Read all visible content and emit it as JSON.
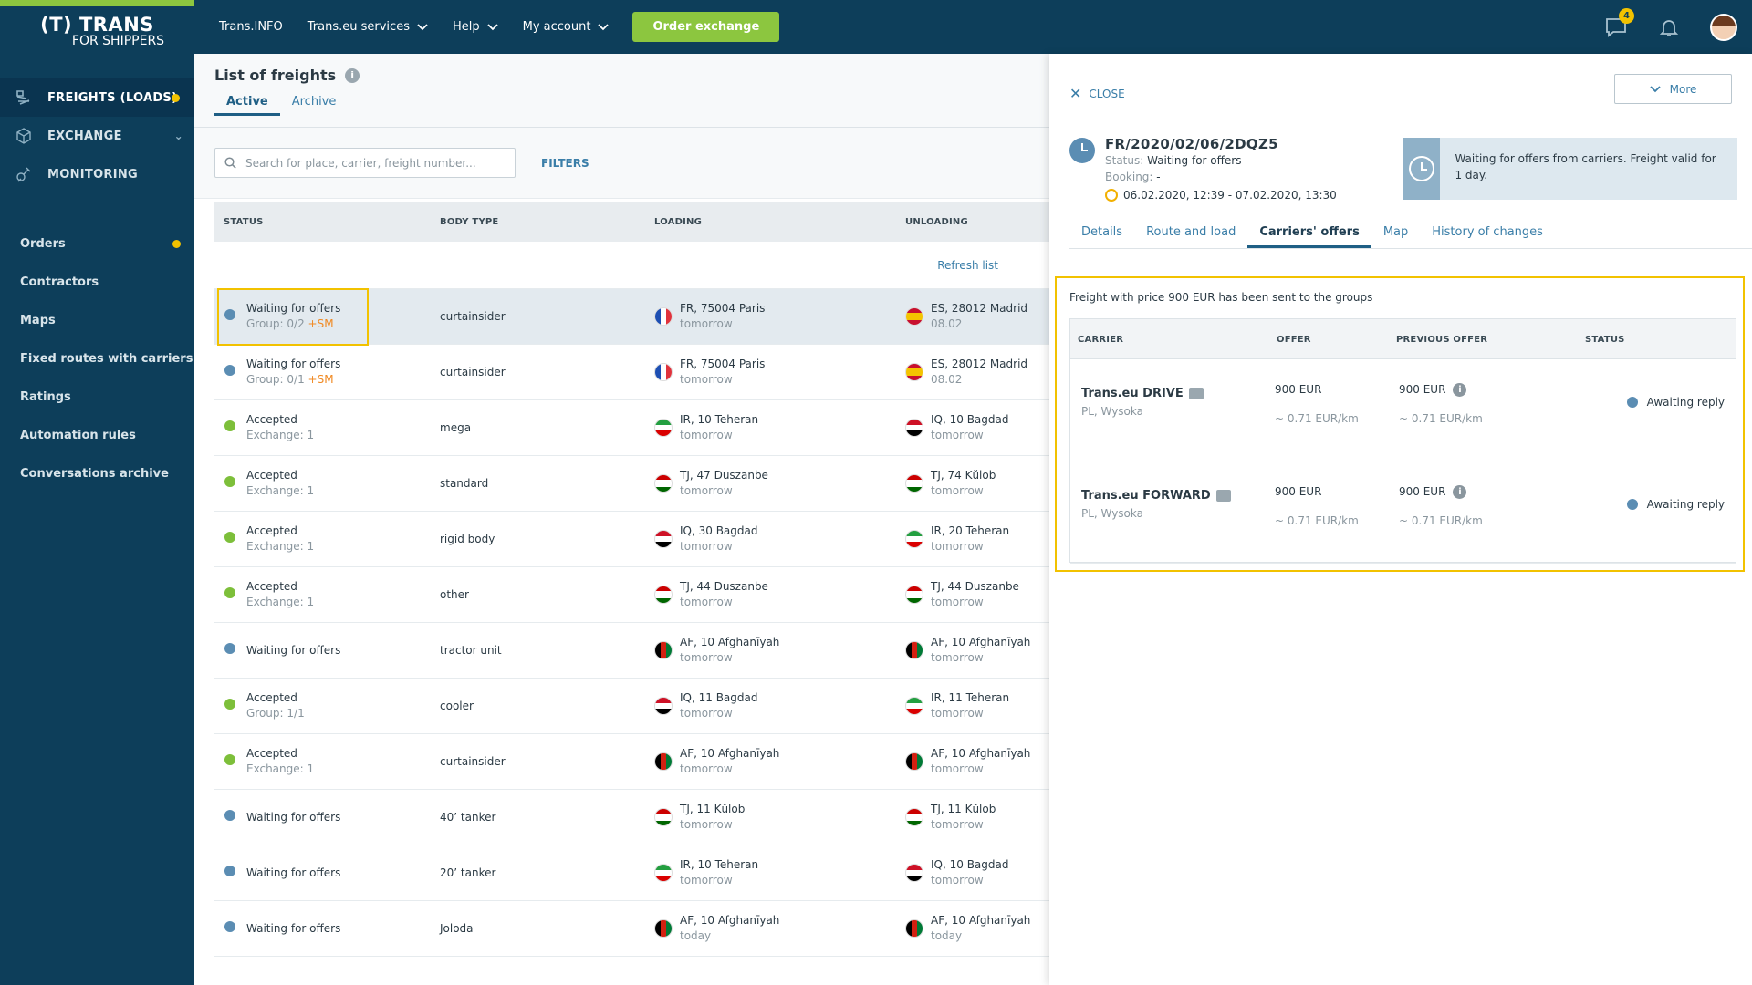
{
  "logo": {
    "line1": "(T) TRANS",
    "line2": "FOR SHIPPERS"
  },
  "sidebar": {
    "main": [
      {
        "label": "FREIGHTS (LOADS)",
        "icon": "freight-icon",
        "active": true,
        "dot": true
      },
      {
        "label": "EXCHANGE",
        "icon": "cube-icon",
        "active": false,
        "chevron": "⌄"
      },
      {
        "label": "MONITORING",
        "icon": "satellite-icon",
        "active": false
      }
    ],
    "sub": [
      {
        "label": "Orders",
        "dot": true
      },
      {
        "label": "Contractors"
      },
      {
        "label": "Maps"
      },
      {
        "label": "Fixed routes with carriers"
      },
      {
        "label": "Ratings"
      },
      {
        "label": "Automation rules"
      },
      {
        "label": "Conversations archive"
      }
    ]
  },
  "topbar": {
    "nav": [
      {
        "label": "Trans.INFO",
        "dropdown": false
      },
      {
        "label": "Trans.eu services",
        "dropdown": true
      },
      {
        "label": "Help",
        "dropdown": true
      },
      {
        "label": "My account",
        "dropdown": true
      }
    ],
    "order_button": "Order exchange",
    "messages_badge": "4"
  },
  "list": {
    "title": "List of freights",
    "info_glyph": "i",
    "tabs": [
      "Active",
      "Archive"
    ],
    "search_placeholder": "Search for place, carrier, freight number...",
    "filters_label": "FILTERS",
    "columns": [
      "STATUS",
      "BODY TYPE",
      "LOADING",
      "UNLOADING"
    ],
    "refresh_label": "Refresh list",
    "rows": [
      {
        "status": "Waiting for offers",
        "kind": "wait",
        "sub": "Group: 0/2 ",
        "sm": "+SM",
        "body": "curtainsider",
        "load_flag": "fr",
        "load": "FR, 75004 Paris",
        "load_when": "tomorrow",
        "unload_flag": "es",
        "unload": "ES, 28012 Madrid",
        "unload_when": "08.02"
      },
      {
        "status": "Waiting for offers",
        "kind": "wait",
        "sub": "Group: 0/1 ",
        "sm": "+SM",
        "body": "curtainsider",
        "load_flag": "fr",
        "load": "FR, 75004 Paris",
        "load_when": "tomorrow",
        "unload_flag": "es",
        "unload": "ES, 28012 Madrid",
        "unload_when": "08.02"
      },
      {
        "status": "Accepted",
        "kind": "ok",
        "sub": "Exchange: 1",
        "sm": "",
        "body": "mega",
        "load_flag": "ir",
        "load": "IR, 10 Teheran",
        "load_when": "tomorrow",
        "unload_flag": "iq",
        "unload": "IQ, 10 Bagdad",
        "unload_when": "tomorrow"
      },
      {
        "status": "Accepted",
        "kind": "ok",
        "sub": "Exchange: 1",
        "sm": "",
        "body": "standard",
        "load_flag": "tj",
        "load": "TJ, 47 Duszanbe",
        "load_when": "tomorrow",
        "unload_flag": "tj",
        "unload": "TJ, 74 Kŭlob",
        "unload_when": "tomorrow"
      },
      {
        "status": "Accepted",
        "kind": "ok",
        "sub": "Exchange: 1",
        "sm": "",
        "body": "rigid body",
        "load_flag": "iq",
        "load": "IQ, 30 Bagdad",
        "load_when": "tomorrow",
        "unload_flag": "ir",
        "unload": "IR, 20 Teheran",
        "unload_when": "tomorrow"
      },
      {
        "status": "Accepted",
        "kind": "ok",
        "sub": "Exchange: 1",
        "sm": "",
        "body": "other",
        "load_flag": "tj",
        "load": "TJ, 44 Duszanbe",
        "load_when": "tomorrow",
        "unload_flag": "tj",
        "unload": "TJ, 44 Duszanbe",
        "unload_when": "tomorrow"
      },
      {
        "status": "Waiting for offers",
        "kind": "wait",
        "sub": "",
        "sm": "",
        "body": "tractor unit",
        "load_flag": "af",
        "load": "AF, 10 Afghanīyah",
        "load_when": "tomorrow",
        "unload_flag": "af",
        "unload": "AF, 10 Afghanīyah",
        "unload_when": "tomorrow"
      },
      {
        "status": "Accepted",
        "kind": "ok",
        "sub": "Group: 1/1",
        "sm": "",
        "body": "cooler",
        "load_flag": "iq",
        "load": "IQ, 11 Bagdad",
        "load_when": "tomorrow",
        "unload_flag": "ir",
        "unload": "IR, 11 Teheran",
        "unload_when": "tomorrow"
      },
      {
        "status": "Accepted",
        "kind": "ok",
        "sub": "Exchange: 1",
        "sm": "",
        "body": "curtainsider",
        "load_flag": "af",
        "load": "AF, 10 Afghanīyah",
        "load_when": "tomorrow",
        "unload_flag": "af",
        "unload": "AF, 10 Afghanīyah",
        "unload_when": "tomorrow"
      },
      {
        "status": "Waiting for offers",
        "kind": "wait",
        "sub": "",
        "sm": "",
        "body": "40’ tanker",
        "load_flag": "tj",
        "load": "TJ, 11 Kŭlob",
        "load_when": "tomorrow",
        "unload_flag": "tj",
        "unload": "TJ, 11 Kŭlob",
        "unload_when": "tomorrow"
      },
      {
        "status": "Waiting for offers",
        "kind": "wait",
        "sub": "",
        "sm": "",
        "body": "20’ tanker",
        "load_flag": "ir",
        "load": "IR, 10 Teheran",
        "load_when": "tomorrow",
        "unload_flag": "iq",
        "unload": "IQ, 10 Bagdad",
        "unload_when": "tomorrow"
      },
      {
        "status": "Waiting for offers",
        "kind": "wait",
        "sub": "",
        "sm": "",
        "body": "Joloda",
        "load_flag": "af",
        "load": "AF, 10 Afghanīyah",
        "load_when": "today",
        "unload_flag": "af",
        "unload": "AF, 10 Afghanīyah",
        "unload_when": "today"
      }
    ]
  },
  "panel": {
    "close_label": "CLOSE",
    "more_label": "More",
    "freight_number": "FR/2020/02/06/2DQZ5",
    "status_label": "Status:",
    "status_value": "Waiting for offers",
    "booking_label": "Booking:",
    "booking_value": "-",
    "validity": "06.02.2020, 12:39 - 07.02.2020, 13:30",
    "info_text": "Waiting for offers from carriers. Freight valid for 1 day.",
    "tabs": [
      "Details",
      "Route and load",
      "Carriers' offers",
      "Map",
      "History of changes"
    ],
    "active_tab": "Carriers' offers",
    "offers_message": "Freight with price 900 EUR has been sent to the groups",
    "offer_columns": [
      "CARRIER",
      "OFFER",
      "PREVIOUS OFFER",
      "STATUS"
    ],
    "offers": [
      {
        "carrier": "Trans.eu DRIVE",
        "location": "PL, Wysoka",
        "offer": "900  EUR",
        "offer_km": "~ 0.71 EUR/km",
        "previous": "900  EUR",
        "previous_km": "~ 0.71 EUR/km",
        "status": "Awaiting reply"
      },
      {
        "carrier": "Trans.eu FORWARD",
        "location": "PL, Wysoka",
        "offer": "900  EUR",
        "offer_km": "~ 0.71 EUR/km",
        "previous": "900  EUR",
        "previous_km": "~ 0.71 EUR/km",
        "status": "Awaiting reply"
      }
    ]
  },
  "colors": {
    "navy": "#0d3e5a",
    "green": "#8cc63f",
    "highlight": "#f2c200",
    "link": "#3a7ea8"
  }
}
